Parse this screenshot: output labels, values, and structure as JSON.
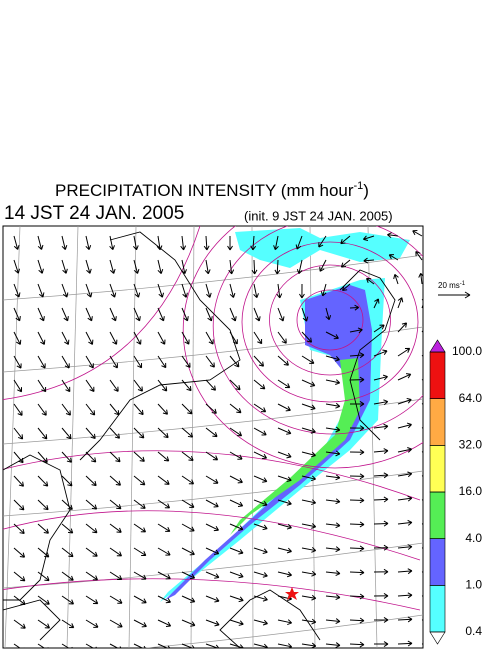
{
  "header": {
    "title": "PRECIPITATION INTENSITY (mm hour",
    "title_sup": "-1",
    "title_close": ")",
    "valid_time": "14 JST 24 JAN. 2005",
    "init_time": "(init. 9 JST 24 JAN. 2005)"
  },
  "reference_vector": {
    "label": "20 ms",
    "sup": "-1"
  },
  "colorbar": {
    "levels": [
      {
        "value": 0.4,
        "label": "0.4"
      },
      {
        "value": 1,
        "label": "1.0"
      },
      {
        "value": 4,
        "label": "4.0"
      },
      {
        "value": 16,
        "label": "16.0"
      },
      {
        "value": 32,
        "label": "32.0"
      },
      {
        "value": 64,
        "label": "64.0"
      },
      {
        "value": 100,
        "label": "100.0"
      }
    ],
    "colors": [
      "#55ffff",
      "#6464ff",
      "#55ee55",
      "#ffff55",
      "#ffaa44",
      "#ee1111"
    ],
    "under_color": "#ffffff",
    "over_color": "#bb22dd"
  }
}
